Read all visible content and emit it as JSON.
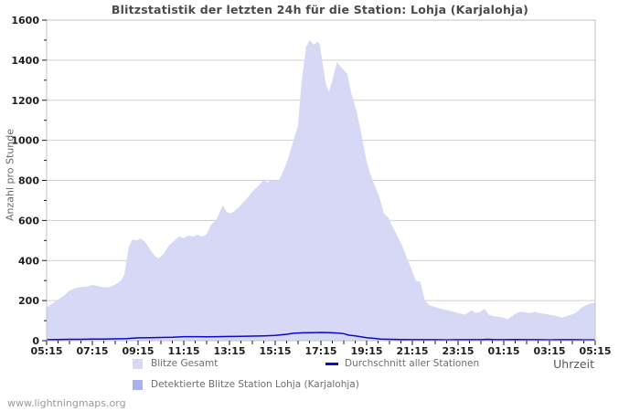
{
  "watermark": "www.lightningmaps.org",
  "colors": {
    "area_total": "#d7d8f5",
    "area_detected": "#abb1ec",
    "avg_line": "#0a0ac9",
    "grid": "#cfcfcf",
    "plot_border": "#c3c3c3",
    "tick": "#1a1a1a",
    "tick_text": "#1f1f1f"
  },
  "chart_data": {
    "type": "area",
    "title": "Blitzstatistik der letzten 24h für die Station: Lohja (Karjalohja)",
    "ylabel": "Anzahl pro Stunde",
    "xlabel": "Uhrzeit",
    "ylim": [
      0,
      1600
    ],
    "y_tick_step": 200,
    "y_minor_step": 100,
    "y_tick_labels": [
      "0",
      "200",
      "400",
      "600",
      "800",
      "1000",
      "1200",
      "1400",
      "1600"
    ],
    "x_hours_span": 24,
    "x_label_step_hours": 2,
    "x_minor_step_hours": 0.5,
    "x_tick_labels": [
      "05:15",
      "07:15",
      "09:15",
      "11:15",
      "13:15",
      "15:15",
      "17:15",
      "19:15",
      "21:15",
      "23:15",
      "01:15",
      "03:15",
      "05:15"
    ],
    "grid": true,
    "legend_position": "bottom",
    "legend": [
      {
        "label": "Blitze Gesamt",
        "type": "area",
        "color": "#d7d8f5"
      },
      {
        "label": "Detektierte Blitze Station Lohja (Karjalohja)",
        "type": "area",
        "color": "#abb1ec"
      },
      {
        "label": "Durchschnitt aller Stationen",
        "type": "line",
        "color": "#0a0ac9"
      }
    ],
    "series": [
      {
        "name": "Blitze Gesamt",
        "type": "area",
        "color": "#d7d8f5",
        "points": [
          [
            0,
            165
          ],
          [
            0.25,
            185
          ],
          [
            0.5,
            205
          ],
          [
            0.75,
            225
          ],
          [
            1,
            250
          ],
          [
            1.25,
            262
          ],
          [
            1.5,
            268
          ],
          [
            1.75,
            270
          ],
          [
            2,
            278
          ],
          [
            2.25,
            272
          ],
          [
            2.5,
            266
          ],
          [
            2.75,
            268
          ],
          [
            3,
            280
          ],
          [
            3.25,
            300
          ],
          [
            3.4,
            330
          ],
          [
            3.6,
            470
          ],
          [
            3.75,
            505
          ],
          [
            3.95,
            500
          ],
          [
            4.1,
            510
          ],
          [
            4.3,
            495
          ],
          [
            4.5,
            460
          ],
          [
            4.75,
            420
          ],
          [
            4.9,
            412
          ],
          [
            5.1,
            430
          ],
          [
            5.35,
            475
          ],
          [
            5.6,
            500
          ],
          [
            5.8,
            520
          ],
          [
            6,
            512
          ],
          [
            6.2,
            525
          ],
          [
            6.4,
            520
          ],
          [
            6.6,
            528
          ],
          [
            6.8,
            520
          ],
          [
            7,
            530
          ],
          [
            7.2,
            580
          ],
          [
            7.4,
            600
          ],
          [
            7.55,
            635
          ],
          [
            7.7,
            675
          ],
          [
            7.9,
            640
          ],
          [
            8.05,
            635
          ],
          [
            8.2,
            645
          ],
          [
            8.4,
            665
          ],
          [
            8.6,
            690
          ],
          [
            8.8,
            715
          ],
          [
            9,
            745
          ],
          [
            9.2,
            765
          ],
          [
            9.4,
            790
          ],
          [
            9.5,
            808
          ],
          [
            9.65,
            790
          ],
          [
            9.8,
            800
          ],
          [
            10,
            797
          ],
          [
            10.15,
            800
          ],
          [
            10.35,
            845
          ],
          [
            10.55,
            905
          ],
          [
            10.75,
            980
          ],
          [
            11,
            1075
          ],
          [
            11.15,
            1290
          ],
          [
            11.35,
            1465
          ],
          [
            11.5,
            1500
          ],
          [
            11.68,
            1478
          ],
          [
            11.85,
            1492
          ],
          [
            11.95,
            1480
          ],
          [
            12.05,
            1400
          ],
          [
            12.2,
            1290
          ],
          [
            12.35,
            1242
          ],
          [
            12.5,
            1300
          ],
          [
            12.7,
            1390
          ],
          [
            12.95,
            1356
          ],
          [
            13.15,
            1333
          ],
          [
            13.35,
            1225
          ],
          [
            13.55,
            1150
          ],
          [
            13.75,
            1042
          ],
          [
            14,
            895
          ],
          [
            14.15,
            835
          ],
          [
            14.35,
            775
          ],
          [
            14.55,
            720
          ],
          [
            14.75,
            636
          ],
          [
            14.95,
            613
          ],
          [
            15.15,
            566
          ],
          [
            15.35,
            521
          ],
          [
            15.55,
            475
          ],
          [
            15.75,
            415
          ],
          [
            15.95,
            360
          ],
          [
            16.15,
            300
          ],
          [
            16.35,
            293
          ],
          [
            16.55,
            200
          ],
          [
            16.75,
            176
          ],
          [
            17,
            168
          ],
          [
            17.2,
            161
          ],
          [
            17.55,
            152
          ],
          [
            18,
            138
          ],
          [
            18.3,
            130
          ],
          [
            18.6,
            152
          ],
          [
            18.75,
            138
          ],
          [
            19,
            145
          ],
          [
            19.15,
            160
          ],
          [
            19.35,
            130
          ],
          [
            19.55,
            122
          ],
          [
            20,
            115
          ],
          [
            20.15,
            107
          ],
          [
            20.35,
            122
          ],
          [
            20.55,
            138
          ],
          [
            20.75,
            145
          ],
          [
            21.15,
            138
          ],
          [
            21.35,
            145
          ],
          [
            21.55,
            138
          ],
          [
            22,
            130
          ],
          [
            22.35,
            122
          ],
          [
            22.55,
            115
          ],
          [
            22.75,
            122
          ],
          [
            23.15,
            138
          ],
          [
            23.35,
            160
          ],
          [
            23.55,
            175
          ],
          [
            23.75,
            184
          ],
          [
            24,
            190
          ]
        ]
      },
      {
        "name": "Detektierte Blitze Station Lohja (Karjalohja)",
        "type": "area",
        "color": "#abb1ec",
        "points": [
          [
            0,
            0
          ],
          [
            24,
            0
          ]
        ]
      },
      {
        "name": "Durchschnitt aller Stationen",
        "type": "line",
        "color": "#0a0ac9",
        "points": [
          [
            0,
            5
          ],
          [
            0.5,
            6
          ],
          [
            1,
            7
          ],
          [
            1.5,
            7
          ],
          [
            2,
            8
          ],
          [
            2.5,
            8
          ],
          [
            3,
            9
          ],
          [
            3.5,
            10
          ],
          [
            4,
            14
          ],
          [
            4.5,
            15
          ],
          [
            5,
            16
          ],
          [
            5.5,
            17
          ],
          [
            6,
            20
          ],
          [
            6.5,
            20
          ],
          [
            7,
            19
          ],
          [
            7.5,
            20
          ],
          [
            8,
            21
          ],
          [
            8.5,
            22
          ],
          [
            9,
            23
          ],
          [
            9.5,
            24
          ],
          [
            10,
            26
          ],
          [
            10.5,
            32
          ],
          [
            10.8,
            37
          ],
          [
            11.2,
            39
          ],
          [
            11.6,
            40
          ],
          [
            12,
            41
          ],
          [
            12.4,
            40
          ],
          [
            12.8,
            38
          ],
          [
            13,
            35
          ],
          [
            13.2,
            28
          ],
          [
            13.5,
            24
          ],
          [
            14,
            15
          ],
          [
            14.3,
            12
          ],
          [
            14.6,
            8
          ],
          [
            15,
            7
          ],
          [
            15.5,
            6
          ],
          [
            16,
            5
          ],
          [
            16.5,
            5
          ],
          [
            17,
            5
          ],
          [
            17.5,
            4
          ],
          [
            18,
            5
          ],
          [
            18.5,
            5
          ],
          [
            19,
            5
          ],
          [
            19.3,
            7
          ],
          [
            19.6,
            5
          ],
          [
            20,
            5
          ],
          [
            20.5,
            6
          ],
          [
            21,
            5
          ],
          [
            21.5,
            5
          ],
          [
            22,
            4
          ],
          [
            22.5,
            5
          ],
          [
            23,
            5
          ],
          [
            23.5,
            4
          ],
          [
            24,
            4
          ]
        ]
      }
    ]
  }
}
